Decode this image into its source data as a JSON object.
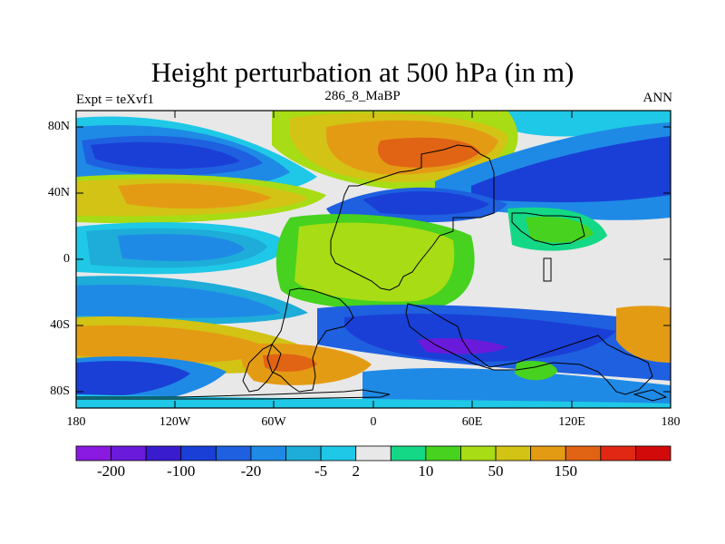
{
  "title": "Height perturbation at 500 hPa (in m)",
  "left_string": "Expt = teXvf1",
  "center_string": "286_8_MaBP",
  "right_string": "ANN",
  "lat_labels": [
    "80N",
    "40N",
    "0",
    "40S",
    "80S"
  ],
  "lon_labels": [
    "180",
    "120W",
    "60W",
    "0",
    "60E",
    "120E",
    "180"
  ],
  "colorbar": {
    "labels": [
      "-200",
      "-100",
      "-20",
      "-5",
      "2",
      "10",
      "50",
      "150"
    ],
    "colors": [
      "#8b1ae0",
      "#6a1adb",
      "#3a1ccf",
      "#1a3fd6",
      "#1e60e0",
      "#1e8ae6",
      "#1eacd8",
      "#1ec8e6",
      "#e8e8e8",
      "#14d886",
      "#46d21e",
      "#a8dc14",
      "#d2c314",
      "#e49b14",
      "#e06414",
      "#e02814",
      "#d20a0a"
    ]
  },
  "colors": {
    "lightgray": "#e8e8e8",
    "blue_dark": "#1a3fd6",
    "blue_mid": "#1e60e0",
    "blue_light": "#1e8ae6",
    "cyan": "#1eacd8",
    "teal": "#14d886",
    "green": "#46d21e",
    "yellowgreen": "#a8dc14",
    "yellow": "#d2c314",
    "orange": "#e49b14",
    "darkorange": "#e06414",
    "purple": "#6a1adb"
  }
}
